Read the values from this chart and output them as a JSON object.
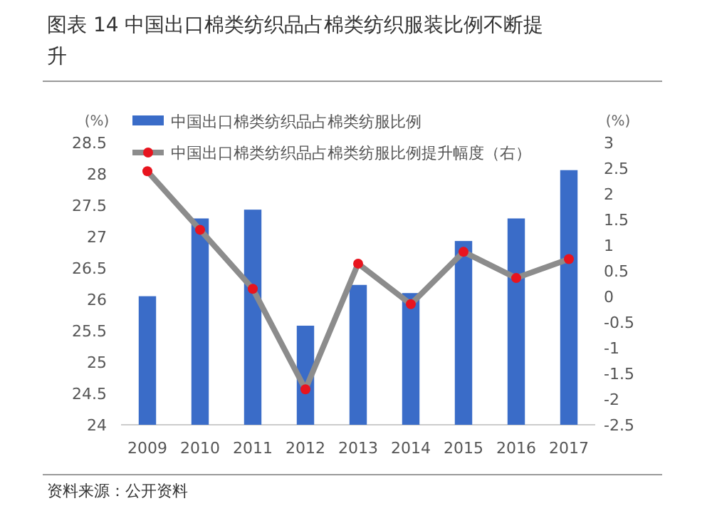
{
  "chart_data": {
    "type": "bar",
    "title": "图表 14 中国出口棉类纺织品占棉类纺织服装比例不断提升",
    "ylabel": "(%)",
    "y2label": "(%)",
    "categories": [
      "2009",
      "2010",
      "2011",
      "2012",
      "2013",
      "2014",
      "2015",
      "2016",
      "2017"
    ],
    "series": [
      {
        "name": "中国出口棉类纺织品占棉类纺服比例",
        "color": "#3a6cc8",
        "values": [
          26.05,
          27.29,
          27.43,
          25.58,
          26.23,
          26.1,
          26.93,
          27.29,
          28.06
        ]
      },
      {
        "name": "中国出口棉类纺织品占棉类纺服比例提升幅度（右）",
        "type": "line",
        "axis": "y2",
        "color": "#8c8c8c",
        "marker": "circle",
        "values": [
          2.44,
          1.3,
          0.15,
          -1.81,
          0.64,
          -0.15,
          0.87,
          0.36,
          0.73
        ]
      }
    ],
    "ylim": [
      24,
      28.5
    ],
    "yticks": [
      24,
      24.5,
      25,
      25.5,
      26,
      26.5,
      27,
      27.5,
      28,
      28.5
    ],
    "y2lim": [
      -2.5,
      3
    ],
    "y2ticks": [
      -2.5,
      -2,
      -1.5,
      -1,
      -0.5,
      0,
      0.5,
      1,
      1.5,
      2,
      2.5,
      3
    ],
    "legend": "top left",
    "grid": false,
    "annotations": [
      "资料来源：公开资料"
    ]
  }
}
